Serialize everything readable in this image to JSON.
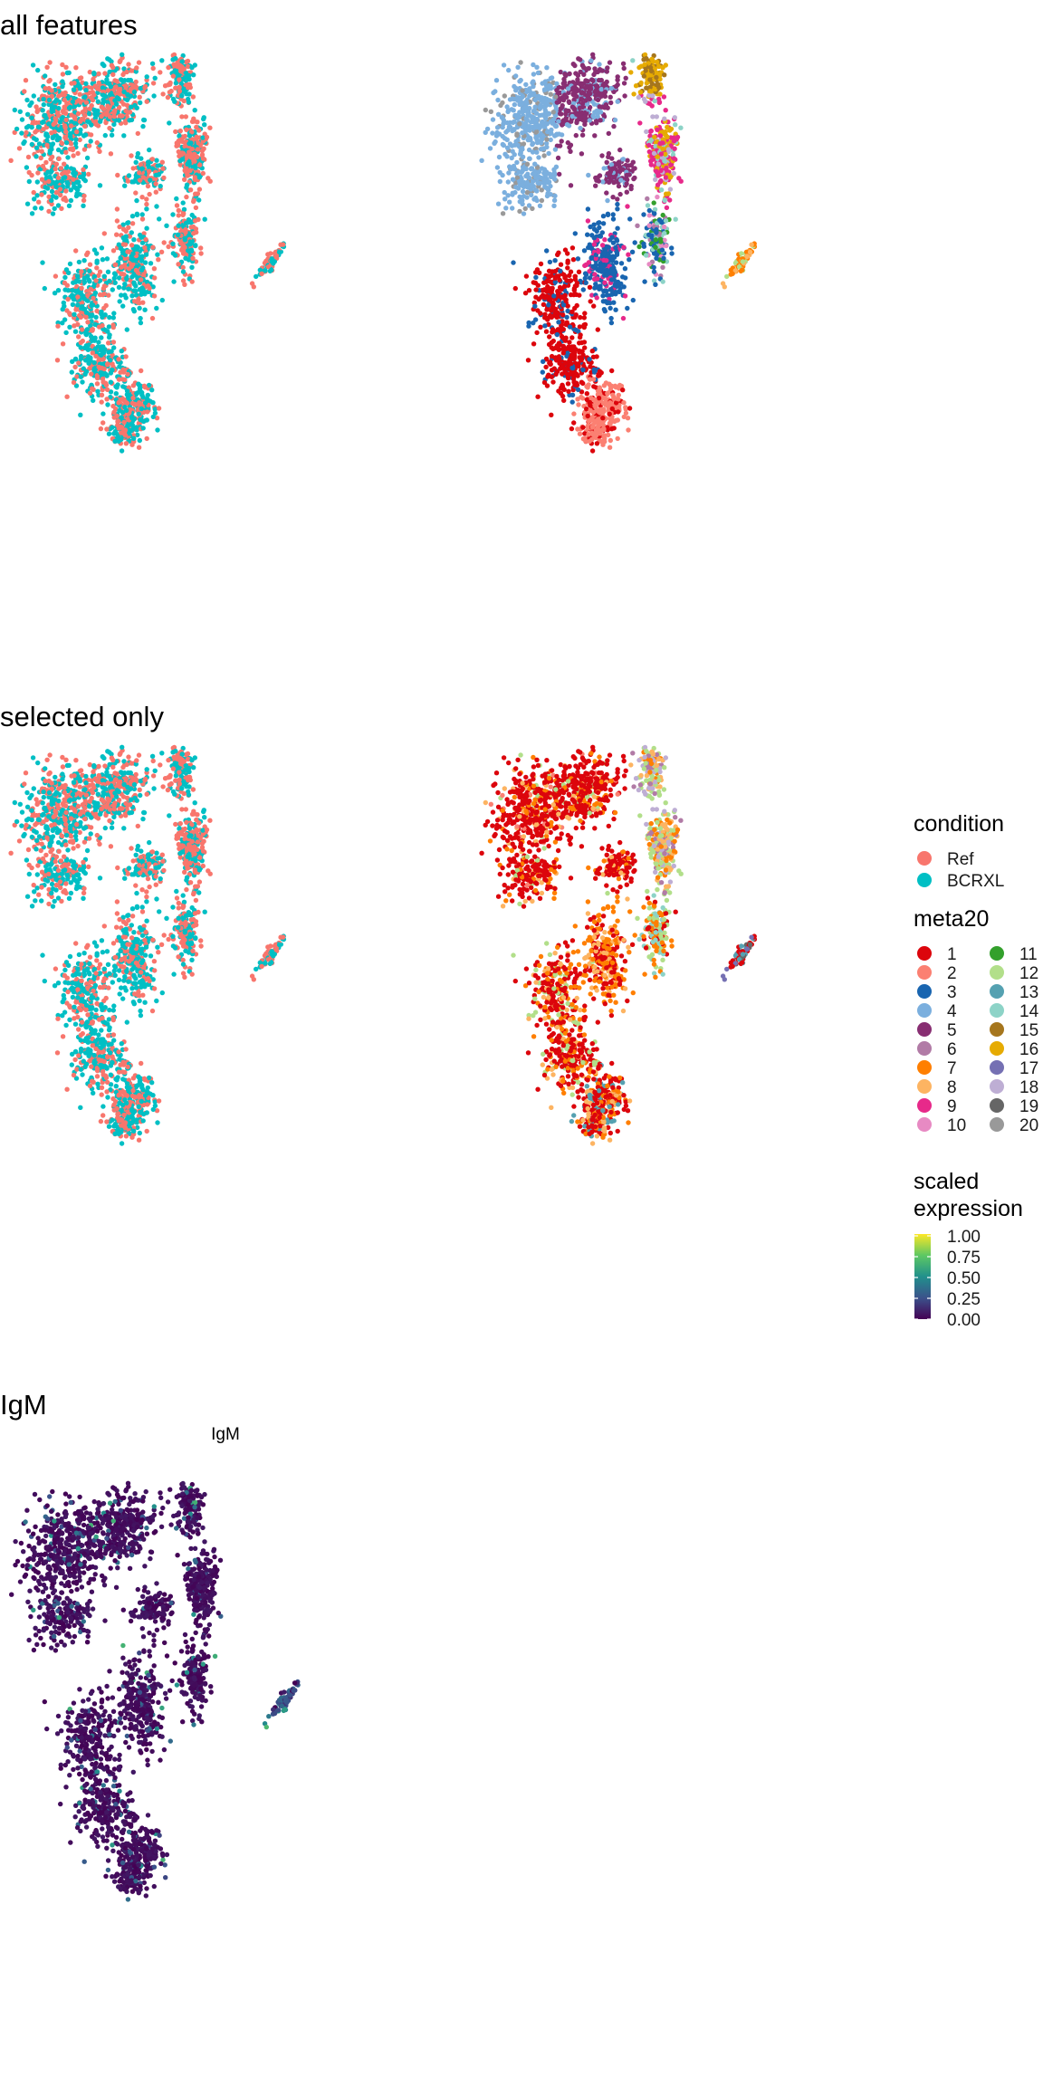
{
  "section_titles": [
    "all features",
    "selected only",
    "IgM"
  ],
  "panel_titles": {
    "igm_panel": "IgM"
  },
  "legend": {
    "condition": {
      "title": "condition",
      "entries": [
        {
          "label": "Ref",
          "color": "#F8766D"
        },
        {
          "label": "BCRXL",
          "color": "#00BFC4"
        }
      ]
    },
    "meta20": {
      "title": "meta20",
      "entries": [
        {
          "label": "1",
          "color": "#DC050C"
        },
        {
          "label": "2",
          "color": "#FB8072"
        },
        {
          "label": "3",
          "color": "#1965B0"
        },
        {
          "label": "4",
          "color": "#7BAFDE"
        },
        {
          "label": "5",
          "color": "#882E72"
        },
        {
          "label": "6",
          "color": "#B17BA6"
        },
        {
          "label": "7",
          "color": "#FF7F00"
        },
        {
          "label": "8",
          "color": "#FDB462"
        },
        {
          "label": "9",
          "color": "#E7298A"
        },
        {
          "label": "10",
          "color": "#E78AC3"
        },
        {
          "label": "11",
          "color": "#33A02C"
        },
        {
          "label": "12",
          "color": "#B2DF8A"
        },
        {
          "label": "13",
          "color": "#55A1B1"
        },
        {
          "label": "14",
          "color": "#8DD3C7"
        },
        {
          "label": "15",
          "color": "#A6761D"
        },
        {
          "label": "16",
          "color": "#E6AB02"
        },
        {
          "label": "17",
          "color": "#7570B3"
        },
        {
          "label": "18",
          "color": "#BEAED4"
        },
        {
          "label": "19",
          "color": "#666666"
        },
        {
          "label": "20",
          "color": "#999999"
        }
      ]
    },
    "expression": {
      "title_lines": [
        "scaled",
        "expression"
      ],
      "ticks": [
        "1.00",
        "0.75",
        "0.50",
        "0.25",
        "0.00"
      ],
      "gradient_colors": [
        "#440154",
        "#3B528B",
        "#21908C",
        "#5DC863",
        "#FDE725"
      ]
    }
  },
  "chart_data": [
    {
      "type": "scatter",
      "section": "all features",
      "color_by": "condition",
      "axes_visible": false,
      "series": [
        {
          "name": "Ref",
          "color": "#F8766D"
        },
        {
          "name": "BCRXL",
          "color": "#00BFC4"
        }
      ]
    },
    {
      "type": "scatter",
      "section": "all features",
      "color_by": "meta20",
      "axes_visible": false
    },
    {
      "type": "scatter",
      "section": "selected only",
      "color_by": "condition",
      "axes_visible": false,
      "series": [
        {
          "name": "Ref",
          "color": "#F8766D"
        },
        {
          "name": "BCRXL",
          "color": "#00BFC4"
        }
      ]
    },
    {
      "type": "scatter",
      "section": "selected only",
      "color_by": "meta20",
      "axes_visible": false
    },
    {
      "type": "scatter",
      "section": "IgM",
      "title": "IgM",
      "color_by": "scaled expression",
      "color_range": [
        0,
        1
      ],
      "axes_visible": false
    }
  ]
}
